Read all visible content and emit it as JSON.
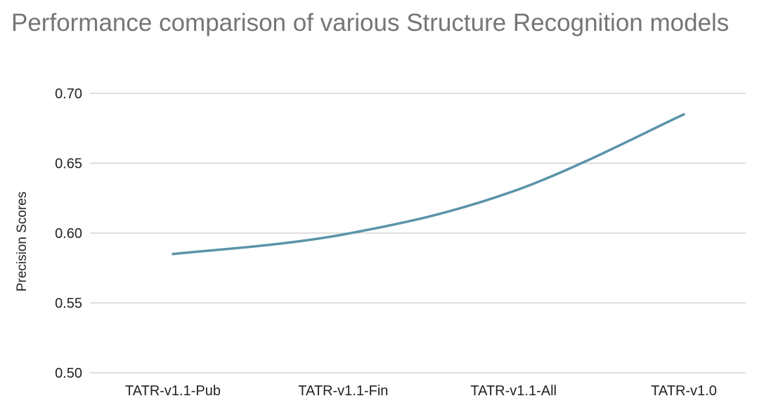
{
  "chart_data": {
    "type": "line",
    "title": "Performance comparison of various Structure Recognition models",
    "xlabel": "",
    "ylabel": "Precision Scores",
    "categories": [
      "TATR-v1.1-Pub",
      "TATR-v1.1-Fin",
      "TATR-v1.1-All",
      "TATR-v1.0"
    ],
    "series": [
      {
        "values": [
          0.585,
          0.599,
          0.63,
          0.685
        ],
        "color": "#5b93aa"
      }
    ],
    "ylim": [
      0.5,
      0.7
    ],
    "yticks": [
      0.5,
      0.55,
      0.6,
      0.65,
      0.7
    ],
    "ytick_labels": [
      "0.50",
      "0.55",
      "0.60",
      "0.65",
      "0.70"
    ],
    "grid": true,
    "legend": "none"
  }
}
